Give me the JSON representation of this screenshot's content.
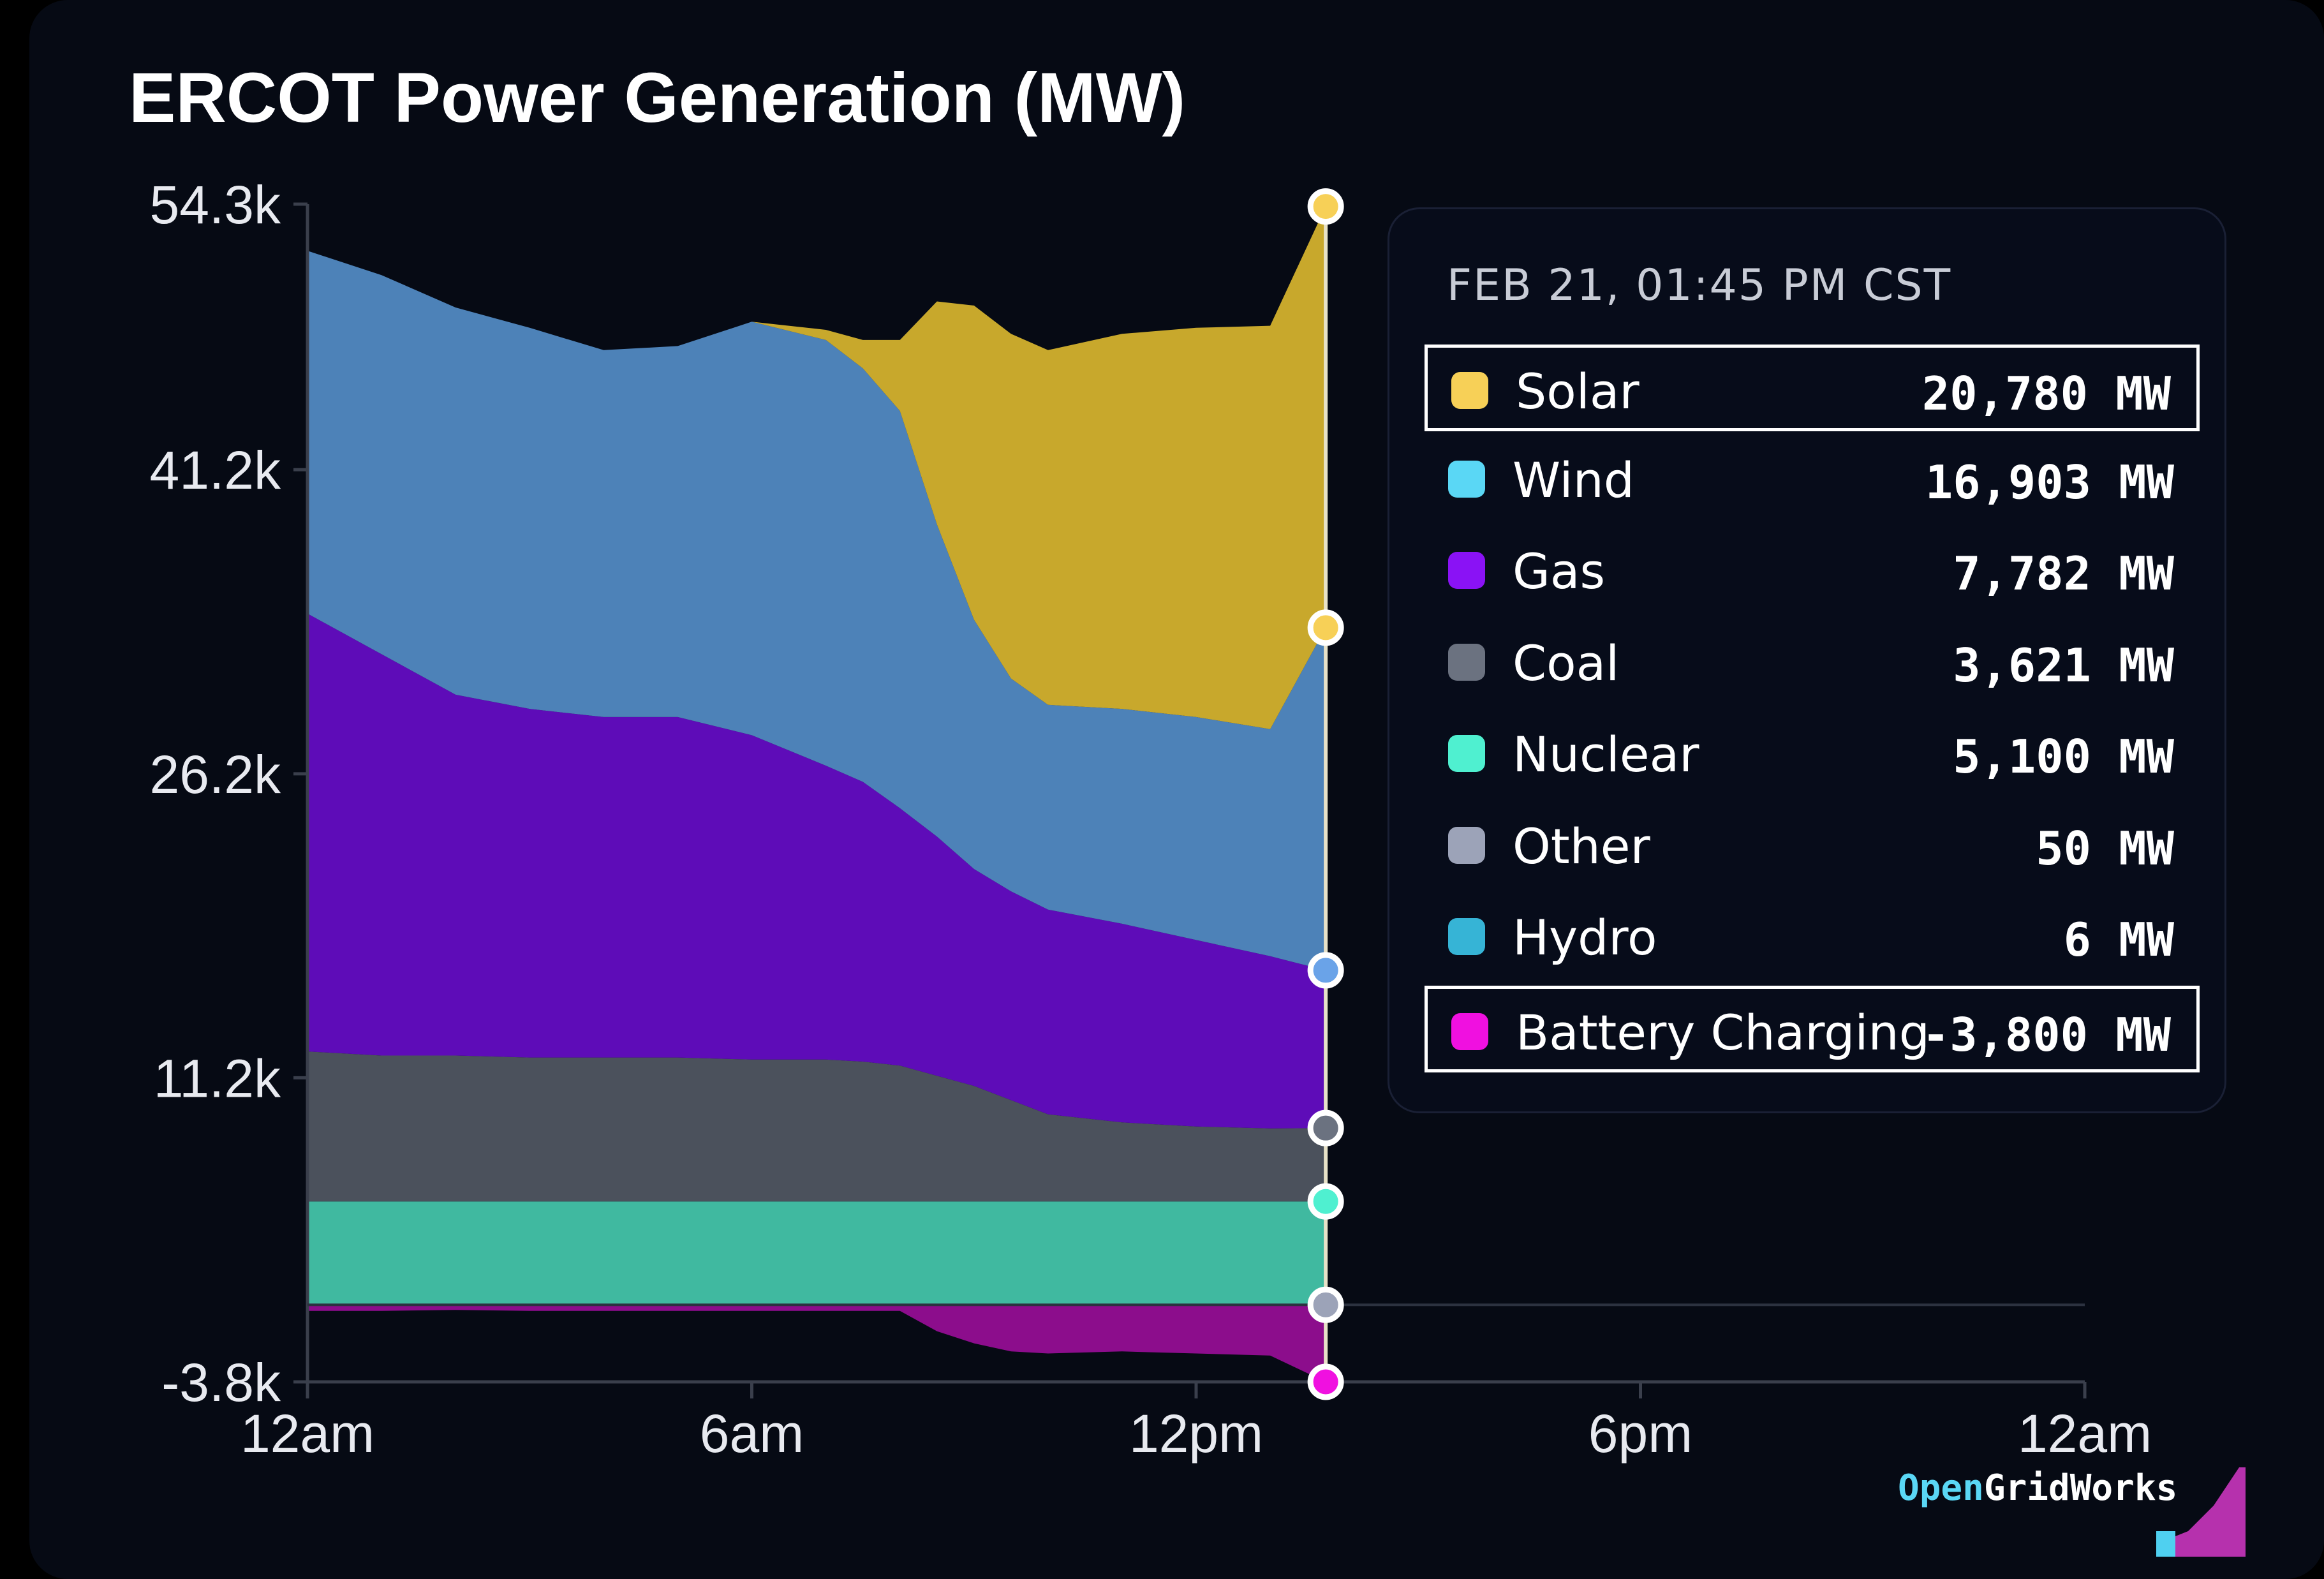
{
  "title": "ERCOT Power Generation (MW)",
  "colors": {
    "background": "#060a14",
    "solar": "#f7d057",
    "wind": "#5ad7f5",
    "gas": "#8a12f5",
    "coal": "#6b7280",
    "nuclear": "#4ff0d0",
    "other": "#9ca3b8",
    "hydro": "#36b4d6",
    "battery_charging": "#f010e0"
  },
  "tooltip": {
    "header": "FEB 21, 01:45 PM CST",
    "rows": [
      {
        "label": "Solar",
        "value": "20,780 MW",
        "color": "#f7d057",
        "highlighted": true
      },
      {
        "label": "Wind",
        "value": "16,903 MW",
        "color": "#5ad7f5",
        "highlighted": false
      },
      {
        "label": "Gas",
        "value": "7,782 MW",
        "color": "#8a12f5",
        "highlighted": false
      },
      {
        "label": "Coal",
        "value": "3,621 MW",
        "color": "#6b7280",
        "highlighted": false
      },
      {
        "label": "Nuclear",
        "value": "5,100 MW",
        "color": "#4ff0d0",
        "highlighted": false
      },
      {
        "label": "Other",
        "value": "50 MW",
        "color": "#9ca3b8",
        "highlighted": false
      },
      {
        "label": "Hydro",
        "value": "6 MW",
        "color": "#36b4d6",
        "highlighted": false
      },
      {
        "label": "Battery Charging",
        "value": "-3,800 MW",
        "color": "#f010e0",
        "highlighted": true
      }
    ]
  },
  "brand": {
    "part1": "Open",
    "part2": "GridWorks"
  },
  "chart_data": {
    "type": "area",
    "stacked": true,
    "title": "ERCOT Power Generation (MW)",
    "ylim": [
      -3800,
      54300
    ],
    "y_ticks": [
      {
        "value": 54300,
        "label": "54.3k"
      },
      {
        "value": 41200,
        "label": "41.2k"
      },
      {
        "value": 26200,
        "label": "26.2k"
      },
      {
        "value": 11200,
        "label": "11.2k"
      },
      {
        "value": -3800,
        "label": "-3.8k"
      }
    ],
    "xlim": [
      0,
      24
    ],
    "x_ticks": [
      {
        "value": 0,
        "label": "12am"
      },
      {
        "value": 6,
        "label": "6am"
      },
      {
        "value": 12,
        "label": "12pm"
      },
      {
        "value": 18,
        "label": "6pm"
      },
      {
        "value": 24,
        "label": "12am"
      }
    ],
    "cursor_x": 13.75,
    "x": [
      0,
      1,
      2,
      3,
      4,
      5,
      6,
      7,
      7.5,
      8,
      8.5,
      9,
      9.5,
      10,
      11,
      12,
      13,
      13.75
    ],
    "series": [
      {
        "name": "Nuclear",
        "color": "#40b9a0",
        "values": [
          5100,
          5100,
          5100,
          5100,
          5100,
          5100,
          5100,
          5100,
          5100,
          5100,
          5100,
          5100,
          5100,
          5100,
          5100,
          5100,
          5100,
          5100
        ]
      },
      {
        "name": "Coal",
        "color": "#4b515c",
        "values": [
          7400,
          7200,
          7200,
          7100,
          7100,
          7100,
          7000,
          7000,
          6900,
          6700,
          6200,
          5700,
          5000,
          4300,
          3900,
          3700,
          3600,
          3621
        ]
      },
      {
        "name": "Gas",
        "color": "#5e0cb8",
        "values": [
          21600,
          19800,
          17800,
          17200,
          16800,
          16800,
          16000,
          14500,
          13800,
          12700,
          11800,
          10700,
          10300,
          10100,
          9800,
          9200,
          8500,
          7782
        ]
      },
      {
        "name": "Wind",
        "color": "#4d82b8",
        "values": [
          17900,
          18700,
          19100,
          18800,
          18100,
          18300,
          20400,
          21000,
          20400,
          19600,
          15400,
          12300,
          10500,
          10100,
          10600,
          11000,
          11200,
          16903
        ]
      },
      {
        "name": "Solar",
        "color": "#c8a82c",
        "values": [
          0,
          0,
          0,
          0,
          0,
          0,
          0,
          500,
          1400,
          3500,
          11000,
          15500,
          17000,
          17500,
          18500,
          19200,
          19900,
          20780
        ]
      },
      {
        "name": "Battery Charging",
        "color": "#8c0d8c",
        "values": [
          -300,
          -300,
          -250,
          -300,
          -300,
          -300,
          -300,
          -300,
          -300,
          -300,
          -1300,
          -1900,
          -2300,
          -2400,
          -2300,
          -2400,
          -2500,
          -3800
        ]
      }
    ]
  }
}
